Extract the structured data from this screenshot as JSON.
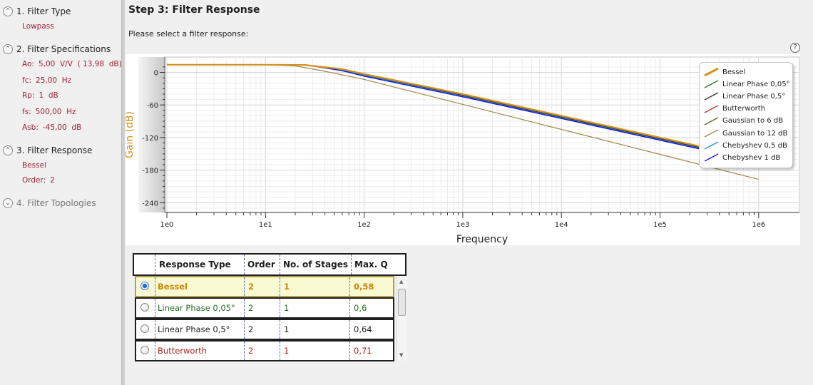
{
  "sidebar": {
    "steps": [
      {
        "label": "1. Filter Type",
        "values": [
          "Lowpass"
        ]
      },
      {
        "label": "2. Filter Specifications",
        "values": [
          {
            "key": "Ao:",
            "value": "5,00  V/V  ( 13,98  dB)"
          },
          {
            "key": "fc:",
            "value": "25,00  Hz"
          },
          {
            "key": "Rp:",
            "value": "1  dB"
          },
          {
            "key": "fs:",
            "value": "500,00  Hz"
          },
          {
            "key": "Asb:",
            "value": "-45,00  dB"
          }
        ]
      },
      {
        "label": "3. Filter Response",
        "values": [
          "Bessel",
          {
            "key": "Order:",
            "value": "2"
          }
        ]
      },
      {
        "label": "4. Filter Topologies",
        "values": []
      }
    ]
  },
  "main": {
    "title": "Step 3: Filter Response",
    "prompt": "Please select a filter response:",
    "help_icon": "question-icon"
  },
  "chart_data": {
    "type": "line",
    "xlabel": "Frequency",
    "ylabel": "Gain (dB)",
    "xscale": "log",
    "xlim": [
      1,
      1000000
    ],
    "ylim": [
      -260,
      14
    ],
    "x_ticks": [
      "1e0",
      "1e1",
      "1e2",
      "1e3",
      "1e4",
      "1e5",
      "1e6"
    ],
    "y_ticks": [
      0,
      -60,
      -120,
      -180,
      -240
    ],
    "grid": true,
    "legend_position": "top-right",
    "series": [
      {
        "name": "Bessel",
        "color": "#d4901c",
        "x": [
          1,
          10,
          25,
          60,
          100,
          1000,
          10000,
          100000,
          300000
        ],
        "y": [
          14,
          14,
          13.7,
          6,
          -3,
          -40,
          -80,
          -120,
          -139
        ]
      },
      {
        "name": "Linear Phase 0,05°",
        "color": "#2a7a2a",
        "x": [
          1,
          10,
          25,
          60,
          100,
          1000,
          10000,
          100000,
          300000
        ],
        "y": [
          14,
          14,
          13.8,
          5,
          -4,
          -41,
          -81,
          -121,
          -140
        ]
      },
      {
        "name": "Linear Phase 0,5°",
        "color": "#333333",
        "x": [
          1,
          10,
          25,
          60,
          100,
          1000,
          10000,
          100000,
          300000
        ],
        "y": [
          14,
          14,
          13.8,
          5,
          -4,
          -42,
          -82,
          -122,
          -141
        ]
      },
      {
        "name": "Butterworth",
        "color": "#c03030",
        "x": [
          1,
          10,
          25,
          60,
          100,
          1000,
          10000,
          100000,
          300000
        ],
        "y": [
          14,
          14,
          13.9,
          4,
          -5,
          -43,
          -83,
          -123,
          -142
        ]
      },
      {
        "name": "Gaussian to 6 dB",
        "color": "#556b2f",
        "x": [
          1,
          10,
          25,
          60,
          100,
          1000,
          10000,
          100000,
          300000
        ],
        "y": [
          14,
          14,
          13.5,
          5,
          -4,
          -42,
          -82,
          -122,
          -141
        ]
      },
      {
        "name": "Gaussian to 12 dB",
        "color": "#9c8a4a",
        "x": [
          1,
          10,
          20,
          40,
          100,
          1000,
          10000,
          100000,
          1000000
        ],
        "y": [
          14,
          14,
          12,
          2,
          -13,
          -59,
          -105,
          -151,
          -197
        ]
      },
      {
        "name": "Chebyshev 0,5 dB",
        "color": "#1e90ff",
        "x": [
          1,
          10,
          25,
          60,
          100,
          1000,
          10000,
          100000,
          300000
        ],
        "y": [
          14,
          14,
          14,
          4,
          -6,
          -44,
          -84,
          -124,
          -143
        ]
      },
      {
        "name": "Chebyshev 1 dB",
        "color": "#1a1ad0",
        "x": [
          1,
          10,
          25,
          60,
          100,
          1000,
          10000,
          100000,
          300000
        ],
        "y": [
          14,
          14,
          14,
          3,
          -7,
          -45,
          -85,
          -125,
          -144
        ]
      }
    ]
  },
  "table": {
    "headers": [
      "Response Type",
      "Order",
      "No. of Stages",
      "Max. Q"
    ],
    "rows": [
      {
        "type": "Bessel",
        "order": "2",
        "stages": "1",
        "maxq": "0,58",
        "color": "#c8860a",
        "selected": true
      },
      {
        "type": "Linear Phase 0,05°",
        "order": "2",
        "stages": "1",
        "maxq": "0,6",
        "color": "#2a6a2a",
        "selected": false
      },
      {
        "type": "Linear Phase 0,5°",
        "order": "2",
        "stages": "1",
        "maxq": "0,64",
        "color": "#1e1e1e",
        "selected": false
      },
      {
        "type": "Butterworth",
        "order": "2",
        "stages": "1",
        "maxq": "0,71",
        "color": "#b02020",
        "selected": false
      }
    ]
  }
}
